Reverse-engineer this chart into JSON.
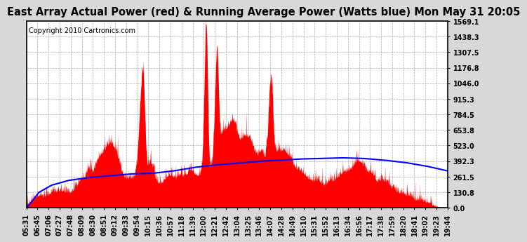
{
  "title": "East Array Actual Power (red) & Running Average Power (Watts blue) Mon May 31 20:05",
  "copyright": "Copyright 2010 Cartronics.com",
  "yticks": [
    0.0,
    130.8,
    261.5,
    392.3,
    523.0,
    653.8,
    784.5,
    915.3,
    1046.0,
    1176.8,
    1307.5,
    1438.3,
    1569.1
  ],
  "ymax": 1569.1,
  "ymin": 0.0,
  "fill_color": "red",
  "line_color": "blue",
  "background_color": "#d8d8d8",
  "plot_bg_color": "#ffffff",
  "grid_color": "#aaaaaa",
  "title_fontsize": 10.5,
  "copyright_fontsize": 7,
  "tick_fontsize": 7,
  "xtick_labels": [
    "05:31",
    "06:45",
    "07:06",
    "07:27",
    "07:48",
    "08:09",
    "08:30",
    "08:51",
    "09:12",
    "09:33",
    "09:54",
    "10:15",
    "10:36",
    "10:57",
    "11:18",
    "11:39",
    "12:00",
    "12:21",
    "12:42",
    "13:04",
    "13:25",
    "13:46",
    "14:07",
    "14:28",
    "14:49",
    "15:10",
    "15:31",
    "15:52",
    "16:13",
    "16:34",
    "16:56",
    "17:17",
    "17:38",
    "17:59",
    "18:20",
    "18:41",
    "19:02",
    "19:23",
    "19:44"
  ],
  "blue_pts_t": [
    0.0,
    0.01,
    0.03,
    0.06,
    0.1,
    0.15,
    0.2,
    0.25,
    0.3,
    0.35,
    0.4,
    0.45,
    0.5,
    0.55,
    0.6,
    0.65,
    0.7,
    0.75,
    0.8,
    0.85,
    0.9,
    0.95,
    1.0
  ],
  "blue_pts_y": [
    0,
    40,
    130,
    190,
    230,
    255,
    270,
    285,
    290,
    310,
    340,
    360,
    375,
    390,
    400,
    410,
    415,
    420,
    415,
    400,
    380,
    350,
    310
  ]
}
